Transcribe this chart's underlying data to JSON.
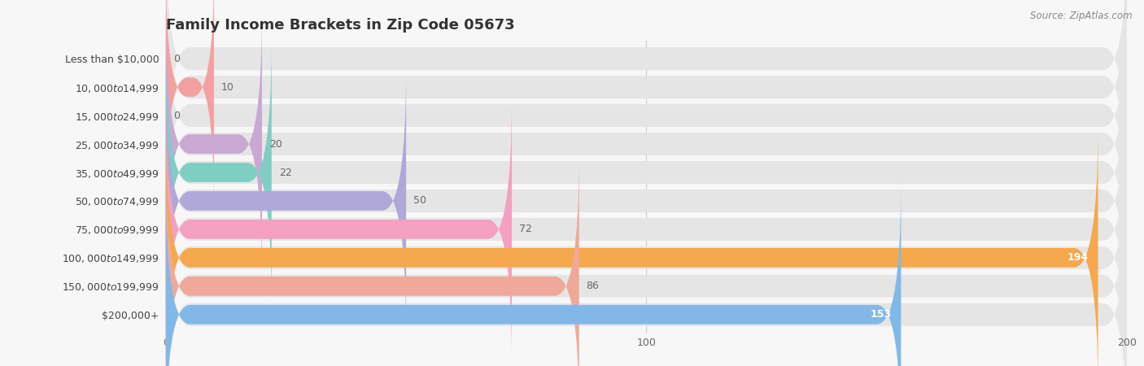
{
  "title": "Family Income Brackets in Zip Code 05673",
  "source": "Source: ZipAtlas.com",
  "categories": [
    "Less than $10,000",
    "$10,000 to $14,999",
    "$15,000 to $24,999",
    "$25,000 to $34,999",
    "$35,000 to $49,999",
    "$50,000 to $74,999",
    "$75,000 to $99,999",
    "$100,000 to $149,999",
    "$150,000 to $199,999",
    "$200,000+"
  ],
  "values": [
    0,
    10,
    0,
    20,
    22,
    50,
    72,
    194,
    86,
    153
  ],
  "bar_colors": [
    "#F5C87A",
    "#F4A0A0",
    "#A8C4E8",
    "#C9A8D4",
    "#7ECEC4",
    "#B0A8D8",
    "#F4A0C0",
    "#F5A84C",
    "#F0A898",
    "#82B8E8"
  ],
  "bg_color": "#f7f7f7",
  "bar_bg_color": "#e5e5e5",
  "xlim": [
    0,
    200
  ],
  "xticks": [
    0,
    100,
    200
  ],
  "title_fontsize": 13,
  "label_fontsize": 9,
  "value_fontsize": 9
}
